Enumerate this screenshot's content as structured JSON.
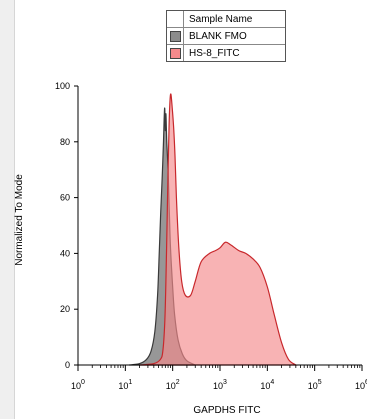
{
  "chart_data": {
    "type": "area",
    "title": "",
    "xlabel": "GAPDHS FITC",
    "ylabel": "Normalized To Mode",
    "x_scale": "log",
    "xlim": [
      1,
      1000000
    ],
    "ylim": [
      0,
      100
    ],
    "x_ticks": [
      {
        "base": "10",
        "exp": "0",
        "value": 1
      },
      {
        "base": "10",
        "exp": "1",
        "value": 10
      },
      {
        "base": "10",
        "exp": "2",
        "value": 100
      },
      {
        "base": "10",
        "exp": "3",
        "value": 1000
      },
      {
        "base": "10",
        "exp": "4",
        "value": 10000
      },
      {
        "base": "10",
        "exp": "5",
        "value": 100000
      },
      {
        "base": "10",
        "exp": "6",
        "value": 1000000
      }
    ],
    "y_ticks": [
      "0",
      "20",
      "40",
      "60",
      "80",
      "100"
    ],
    "legend": {
      "title": "Sample Name",
      "position": "top-center"
    },
    "series": [
      {
        "name": "BLANK FMO",
        "color": "#3a3a3a",
        "fill": "#8c8c8c",
        "points": [
          [
            12,
            0
          ],
          [
            20,
            0.5
          ],
          [
            28,
            2
          ],
          [
            35,
            5
          ],
          [
            42,
            12
          ],
          [
            48,
            25
          ],
          [
            52,
            40
          ],
          [
            56,
            55
          ],
          [
            60,
            67
          ],
          [
            64,
            80
          ],
          [
            66,
            88
          ],
          [
            68,
            92
          ],
          [
            70,
            84
          ],
          [
            72,
            90
          ],
          [
            75,
            80
          ],
          [
            80,
            70
          ],
          [
            85,
            55
          ],
          [
            90,
            42
          ],
          [
            100,
            28
          ],
          [
            110,
            18
          ],
          [
            130,
            9
          ],
          [
            160,
            4
          ],
          [
            200,
            1.5
          ],
          [
            300,
            0
          ]
        ]
      },
      {
        "name": "HS-8_FITC",
        "color": "#c8282c",
        "fill": "#f58a8c",
        "points": [
          [
            20,
            0
          ],
          [
            40,
            0.5
          ],
          [
            55,
            2
          ],
          [
            62,
            5
          ],
          [
            68,
            15
          ],
          [
            72,
            30
          ],
          [
            76,
            50
          ],
          [
            80,
            70
          ],
          [
            84,
            86
          ],
          [
            88,
            95
          ],
          [
            92,
            97
          ],
          [
            98,
            92
          ],
          [
            105,
            85
          ],
          [
            112,
            75
          ],
          [
            120,
            60
          ],
          [
            135,
            42
          ],
          [
            155,
            30
          ],
          [
            185,
            25
          ],
          [
            240,
            25
          ],
          [
            300,
            30
          ],
          [
            400,
            37
          ],
          [
            600,
            40
          ],
          [
            800,
            41
          ],
          [
            1000,
            42
          ],
          [
            1300,
            44
          ],
          [
            1700,
            43
          ],
          [
            2500,
            41
          ],
          [
            3500,
            40
          ],
          [
            5000,
            38
          ],
          [
            7000,
            35
          ],
          [
            10000,
            28
          ],
          [
            14000,
            18
          ],
          [
            20000,
            8
          ],
          [
            28000,
            2
          ],
          [
            40000,
            0
          ]
        ]
      }
    ]
  }
}
